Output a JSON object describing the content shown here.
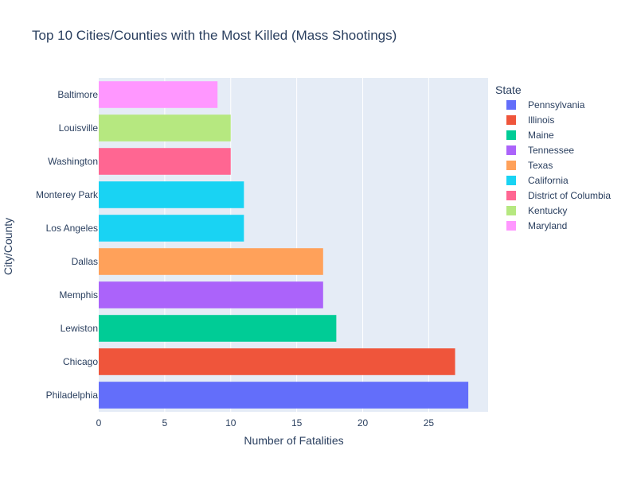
{
  "chart_data": {
    "type": "bar",
    "orientation": "horizontal",
    "title": "Top 10 Cities/Counties with the Most Killed (Mass Shootings)",
    "xlabel": "Number of Fatalities",
    "ylabel": "City/County",
    "xlim": [
      0,
      29.5
    ],
    "x_ticks": [
      0,
      5,
      10,
      15,
      20,
      25
    ],
    "grid": true,
    "legend_title": "State",
    "legend_position": "right",
    "bars": [
      {
        "category": "Philadelphia",
        "value": 28,
        "state": "Pennsylvania"
      },
      {
        "category": "Chicago",
        "value": 27,
        "state": "Illinois"
      },
      {
        "category": "Lewiston",
        "value": 18,
        "state": "Maine"
      },
      {
        "category": "Memphis",
        "value": 17,
        "state": "Tennessee"
      },
      {
        "category": "Dallas",
        "value": 17,
        "state": "Texas"
      },
      {
        "category": "Los Angeles",
        "value": 11,
        "state": "California"
      },
      {
        "category": "Monterey Park",
        "value": 11,
        "state": "California"
      },
      {
        "category": "Washington",
        "value": 10,
        "state": "District of Columbia"
      },
      {
        "category": "Louisville",
        "value": 10,
        "state": "Kentucky"
      },
      {
        "category": "Baltimore",
        "value": 9,
        "state": "Maryland"
      }
    ],
    "legend": [
      {
        "name": "Pennsylvania",
        "color": "#636efa"
      },
      {
        "name": "Illinois",
        "color": "#EF553B"
      },
      {
        "name": "Maine",
        "color": "#00cc96"
      },
      {
        "name": "Tennessee",
        "color": "#ab63fa"
      },
      {
        "name": "Texas",
        "color": "#FFA15A"
      },
      {
        "name": "California",
        "color": "#19d3f3"
      },
      {
        "name": "District of Columbia",
        "color": "#FF6692"
      },
      {
        "name": "Kentucky",
        "color": "#B6E880"
      },
      {
        "name": "Maryland",
        "color": "#FF97FF"
      }
    ],
    "colors": {
      "plot_background": "#E5ECF6",
      "grid": "#ffffff",
      "text": "#2a3f5f"
    }
  }
}
